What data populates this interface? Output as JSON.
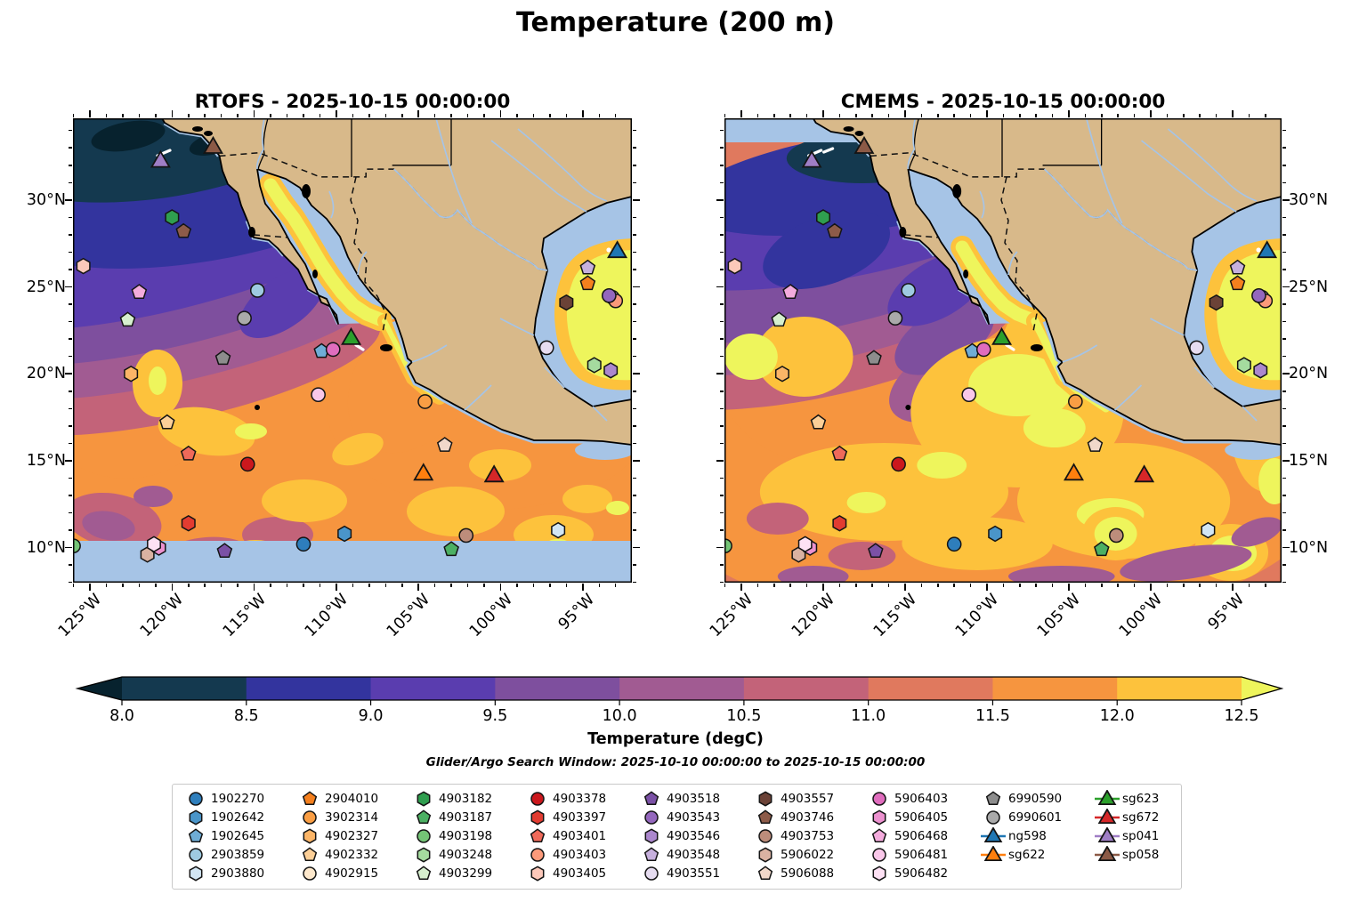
{
  "title": "Temperature (200 m)",
  "panels": [
    {
      "name": "RTOFS",
      "title": "RTOFS - 2025-10-15 00:00:00"
    },
    {
      "name": "CMEMS",
      "title": "CMEMS - 2025-10-15 00:00:00"
    }
  ],
  "axes": {
    "lon_labels": [
      "125°W",
      "120°W",
      "115°W",
      "110°W",
      "105°W",
      "100°W",
      "95°W"
    ],
    "lat_labels": [
      "30°N",
      "25°N",
      "20°N",
      "15°N",
      "10°N"
    ]
  },
  "colorbar": {
    "label": "Temperature (degC)",
    "tick_labels": [
      "8.0",
      "8.5",
      "9.0",
      "9.5",
      "10.0",
      "10.5",
      "11.0",
      "11.5",
      "12.0",
      "12.5"
    ],
    "under_color": "#07222e",
    "band_colors": [
      "#14394f",
      "#33349e",
      "#5a3daf",
      "#7e4f9e",
      "#a15b92",
      "#c36379",
      "#e0795e",
      "#f6953f",
      "#fdc23c"
    ],
    "over_color": "#eef55c"
  },
  "search_note": "Glider/Argo Search Window: 2025-10-10 00:00:00 to 2025-10-15 00:00:00",
  "map_colors": {
    "land": "#d8b98a",
    "masked_water": "#a6c4e6",
    "coastline": "#000000"
  },
  "chart_data": {
    "type": "heatmap",
    "title": "Temperature (200 m)",
    "panels": [
      "RTOFS - 2025-10-15 00:00:00",
      "CMEMS - 2025-10-15 00:00:00"
    ],
    "colorbar_range": [
      8.0,
      12.5
    ],
    "colorbar_step": 0.5,
    "colorbar_label": "Temperature (degC)",
    "lon_range": [
      -126.0,
      -92.0
    ],
    "lat_range": [
      8.0,
      34.7
    ],
    "platforms": [
      {
        "id": "1902270",
        "shape": "circle",
        "color": "#2e7ebc",
        "lon": -112.0,
        "lat": 10.2
      },
      {
        "id": "1902642",
        "shape": "hexagon",
        "color": "#4a95c9",
        "lon": -109.5,
        "lat": 10.8
      },
      {
        "id": "1902645",
        "shape": "pentagon",
        "color": "#6fadd6",
        "lon": -110.9,
        "lat": 21.3
      },
      {
        "id": "2903859",
        "shape": "circle",
        "color": "#9ecae1",
        "lon": -114.8,
        "lat": 24.8
      },
      {
        "id": "2903880",
        "shape": "hexagon",
        "color": "#d2e6f4",
        "lon": -96.5,
        "lat": 11.0
      },
      {
        "id": "2904010",
        "shape": "pentagon",
        "color": "#f5801e",
        "lon": -94.7,
        "lat": 25.2
      },
      {
        "id": "3902314",
        "shape": "circle",
        "color": "#fa9e44",
        "lon": -104.6,
        "lat": 18.4
      },
      {
        "id": "4902327",
        "shape": "hexagon",
        "color": "#fbb567",
        "lon": -122.5,
        "lat": 20.0
      },
      {
        "id": "4902332",
        "shape": "pentagon",
        "color": "#fccf97",
        "lon": -120.3,
        "lat": 17.2
      },
      {
        "id": "4902915",
        "shape": "circle",
        "color": "#fde8cc",
        "lon": -93.2,
        "lat": 24.4
      },
      {
        "id": "4903182",
        "shape": "hexagon",
        "color": "#2f9e4f",
        "lon": -120.0,
        "lat": 29.0
      },
      {
        "id": "4903187",
        "shape": "pentagon",
        "color": "#4cb063",
        "lon": -103.0,
        "lat": 9.9
      },
      {
        "id": "4903198",
        "shape": "circle",
        "color": "#74c476",
        "lon": -126.0,
        "lat": 10.1
      },
      {
        "id": "4903248",
        "shape": "hexagon",
        "color": "#a5db9f",
        "lon": -94.3,
        "lat": 20.5
      },
      {
        "id": "4903299",
        "shape": "pentagon",
        "color": "#d6efce",
        "lon": -122.7,
        "lat": 23.1
      },
      {
        "id": "4903378",
        "shape": "circle",
        "color": "#cb181d",
        "lon": -115.4,
        "lat": 14.8
      },
      {
        "id": "4903397",
        "shape": "hexagon",
        "color": "#e23c31",
        "lon": -119.0,
        "lat": 11.4
      },
      {
        "id": "4903401",
        "shape": "pentagon",
        "color": "#ef6a5a",
        "lon": -119.0,
        "lat": 15.4
      },
      {
        "id": "4903403",
        "shape": "circle",
        "color": "#fc9a7a",
        "lon": -93.0,
        "lat": 24.2
      },
      {
        "id": "4903405",
        "shape": "hexagon",
        "color": "#fcc8ba",
        "lon": -125.4,
        "lat": 26.2
      },
      {
        "id": "4903518",
        "shape": "pentagon",
        "color": "#7b51a6",
        "lon": -116.8,
        "lat": 9.8
      },
      {
        "id": "4903543",
        "shape": "circle",
        "color": "#9467bd",
        "lon": -93.4,
        "lat": 24.5
      },
      {
        "id": "4903546",
        "shape": "hexagon",
        "color": "#ab87cd",
        "lon": -93.3,
        "lat": 20.2
      },
      {
        "id": "4903548",
        "shape": "pentagon",
        "color": "#c7b0dd",
        "lon": -94.7,
        "lat": 26.1
      },
      {
        "id": "4903551",
        "shape": "circle",
        "color": "#e6dcf0",
        "lon": -97.2,
        "lat": 21.5
      },
      {
        "id": "4903557",
        "shape": "hexagon",
        "color": "#6b4237",
        "lon": -96.0,
        "lat": 24.1
      },
      {
        "id": "4903746",
        "shape": "pentagon",
        "color": "#8d5b49",
        "lon": -119.3,
        "lat": 28.2
      },
      {
        "id": "4903753",
        "shape": "circle",
        "color": "#bd8d7b",
        "lon": -102.1,
        "lat": 10.7
      },
      {
        "id": "5906022",
        "shape": "hexagon",
        "color": "#dab2a2",
        "lon": -121.5,
        "lat": 9.6
      },
      {
        "id": "5906088",
        "shape": "pentagon",
        "color": "#f1d8ca",
        "lon": -103.4,
        "lat": 15.9
      },
      {
        "id": "5906403",
        "shape": "circle",
        "color": "#e06dbe",
        "lon": -110.2,
        "lat": 21.4
      },
      {
        "id": "5906405",
        "shape": "hexagon",
        "color": "#ec91cf",
        "lon": -120.8,
        "lat": 10.0
      },
      {
        "id": "5906468",
        "shape": "pentagon",
        "color": "#f4abdd",
        "lon": -122.0,
        "lat": 24.7
      },
      {
        "id": "5906481",
        "shape": "circle",
        "color": "#f9c7e9",
        "lon": -111.1,
        "lat": 18.8
      },
      {
        "id": "5906482",
        "shape": "hexagon",
        "color": "#fde1f4",
        "lon": -121.1,
        "lat": 10.2
      },
      {
        "id": "6990590",
        "shape": "pentagon",
        "color": "#8d8d8d",
        "lon": -116.9,
        "lat": 20.9
      },
      {
        "id": "6990601",
        "shape": "circle",
        "color": "#aaaaaa",
        "lon": -115.6,
        "lat": 23.2
      },
      {
        "id": "ng598",
        "shape": "triangle",
        "color": "#1f77b4",
        "type": "glider",
        "lon": -92.9,
        "lat": 27.0
      },
      {
        "id": "sg622",
        "shape": "triangle",
        "color": "#ff7f0e",
        "type": "glider",
        "lon": -104.7,
        "lat": 14.2
      },
      {
        "id": "sg623",
        "shape": "triangle",
        "color": "#2ca02c",
        "type": "glider",
        "lon": -109.1,
        "lat": 22.0
      },
      {
        "id": "sg672",
        "shape": "triangle",
        "color": "#d62728",
        "type": "glider",
        "lon": -100.4,
        "lat": 14.1
      },
      {
        "id": "sp041",
        "shape": "triangle",
        "color": "#9f7ec6",
        "type": "glider",
        "lon": -120.7,
        "lat": 32.2
      },
      {
        "id": "sp058",
        "shape": "triangle",
        "color": "#8c5a46",
        "type": "glider",
        "lon": -117.5,
        "lat": 33.0
      }
    ]
  }
}
